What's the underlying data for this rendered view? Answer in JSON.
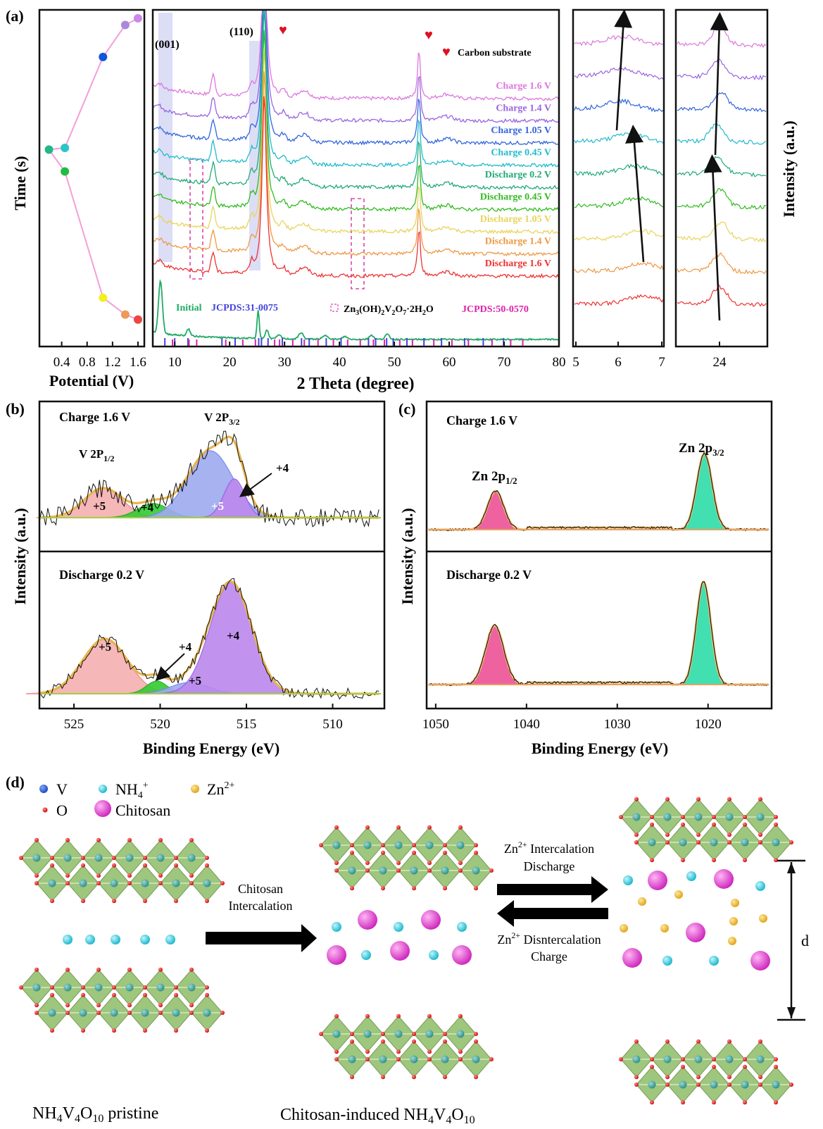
{
  "panel_labels": {
    "a": "(a)",
    "b": "(b)",
    "c": "(c)",
    "d": "(d)"
  },
  "chart_data": [
    {
      "id": "a_time_potential",
      "type": "scatter",
      "xlabel": "Potential (V)",
      "ylabel": "Time (s)",
      "x_ticks": [
        "0.4",
        "0.8",
        "1.2",
        "1.6"
      ],
      "xlim": [
        0.05,
        1.7
      ],
      "points": [
        {
          "x": 0.2,
          "y": 0.585,
          "color": "#20b888"
        },
        {
          "x": 0.45,
          "y": 0.59,
          "color": "#2cc4c8"
        },
        {
          "x": 0.45,
          "y": 0.52,
          "color": "#22bb44"
        },
        {
          "x": 1.05,
          "y": 0.86,
          "color": "#1155dd"
        },
        {
          "x": 1.4,
          "y": 0.955,
          "color": "#aa88dd"
        },
        {
          "x": 1.6,
          "y": 0.975,
          "color": "#cc88e8"
        },
        {
          "x": 1.05,
          "y": 0.145,
          "color": "#f4ee20"
        },
        {
          "x": 1.4,
          "y": 0.095,
          "color": "#ee9955"
        },
        {
          "x": 1.6,
          "y": 0.08,
          "color": "#ee4444"
        }
      ]
    },
    {
      "id": "a_xrd",
      "type": "line",
      "xlabel": "2 Theta (degree)",
      "xlim": [
        6,
        80
      ],
      "x_ticks": [
        "10",
        "20",
        "30",
        "40",
        "50",
        "60",
        "70",
        "80"
      ],
      "peak_labels": [
        "(001)",
        "(110)"
      ],
      "carbon_label": "Carbon substrate",
      "series": [
        {
          "name": "Charge 1.6 V",
          "color": "#dd77dd"
        },
        {
          "name": "Charge 1.4 V",
          "color": "#9966dd"
        },
        {
          "name": "Charge 1.05 V",
          "color": "#3366dd"
        },
        {
          "name": "Charge 0.45 V",
          "color": "#22bbcc"
        },
        {
          "name": "Discharge 0.2 V",
          "color": "#22aa77"
        },
        {
          "name": "Discharge 0.45 V",
          "color": "#33bb22"
        },
        {
          "name": "Discharge 1.05 V",
          "color": "#e8d45c"
        },
        {
          "name": "Discharge 1.4 V",
          "color": "#ee9944"
        },
        {
          "name": "Discharge 1.6 V",
          "color": "#ee3333"
        }
      ],
      "initial": {
        "name": "Initial",
        "color": "#22aa66"
      },
      "references": [
        {
          "label": "JCPDS:31-0075",
          "color": "#4444dd"
        },
        {
          "compound": "Zn3(OH)2V2O7·2H2O",
          "label": "JCPDS:50-0570",
          "color": "#dd22aa"
        }
      ]
    },
    {
      "id": "a_zoom_low",
      "type": "line",
      "xlim": [
        5,
        7
      ],
      "x_ticks": [
        "5",
        "6",
        "7"
      ]
    },
    {
      "id": "a_zoom_high",
      "type": "line",
      "x_ticks": [
        "24"
      ],
      "ylabel": "Intensity (a.u.)"
    },
    {
      "id": "b_xps_v2p",
      "type": "area",
      "xlabel": "Binding Energy (eV)",
      "ylabel": "Intensity (a.u.)",
      "xlim": [
        527,
        507
      ],
      "x_ticks": [
        "525",
        "520",
        "515",
        "510"
      ],
      "top": {
        "title": "Charge 1.6 V",
        "peak_labels": [
          "V 2P1/2",
          "V 2P3/2"
        ],
        "state_labels": [
          "+5",
          "+4",
          "+5",
          "+4"
        ]
      },
      "bottom": {
        "title": "Discharge 0.2 V",
        "state_labels": [
          "+5",
          "+4",
          "+5",
          "+4"
        ]
      }
    },
    {
      "id": "c_xps_zn2p",
      "type": "area",
      "xlabel": "Binding Energy (eV)",
      "ylabel": "Intensity (a.u.)",
      "xlim": [
        1051,
        1013
      ],
      "x_ticks": [
        "1050",
        "1040",
        "1030",
        "1020"
      ],
      "top": {
        "title": "Charge 1.6 V",
        "peak_labels": [
          "Zn 2p1/2",
          "Zn 2p3/2"
        ]
      },
      "bottom": {
        "title": "Discharge 0.2 V"
      }
    }
  ],
  "schematic": {
    "legend": [
      {
        "label": "V",
        "color": "#1a55cc"
      },
      {
        "label": "NH4+",
        "color": "#22ccdd"
      },
      {
        "label": "Zn2+",
        "color": "#f0b020"
      },
      {
        "label": "O",
        "color": "#dd1111"
      },
      {
        "label": "Chitosan",
        "color": "#dd44cc"
      }
    ],
    "arrow_chitosan": [
      "Chitosan",
      "Intercalation"
    ],
    "arrow_discharge": [
      "Zn2+ Intercalation",
      "Discharge"
    ],
    "arrow_charge": [
      "Zn2+ Disntercalation",
      "Charge"
    ],
    "spacing_label": "d",
    "captions": [
      "NH4V4O10 pristine",
      "Chitosan-induced NH4V4O10"
    ]
  }
}
